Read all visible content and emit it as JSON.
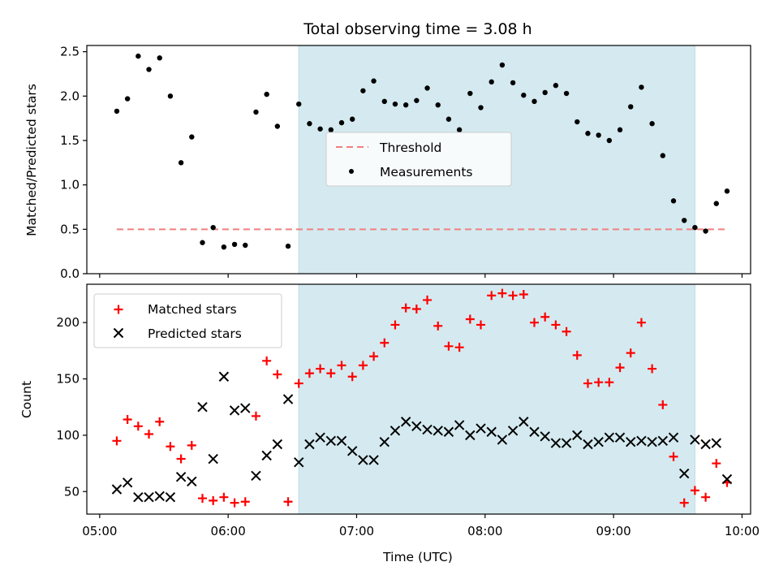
{
  "chart_data": [
    {
      "type": "scatter",
      "title": "Total observing time = 3.08 h",
      "xlabel": "",
      "ylabel": "Matched/Predicted stars",
      "ylim": [
        0,
        2.57
      ],
      "yticks": [
        "0.0",
        "0.5",
        "1.0",
        "1.5",
        "2.0",
        "2.5"
      ],
      "ytick_values": [
        0,
        0.5,
        1.0,
        1.5,
        2.0,
        2.5
      ],
      "grid": false,
      "legend_position": "center",
      "shaded_interval": [
        "06:33",
        "09:38"
      ],
      "shade_color": "#d4eaf0",
      "series": [
        {
          "name": "Threshold",
          "kind": "dashed-line",
          "color": "#f08080",
          "x": [
            "05:08",
            "09:52"
          ],
          "y": [
            0.5,
            0.5
          ]
        },
        {
          "name": "Measurements",
          "kind": "points",
          "color": "#000000",
          "x": [
            "05:08",
            "05:13",
            "05:18",
            "05:23",
            "05:28",
            "05:33",
            "05:38",
            "05:43",
            "05:48",
            "05:53",
            "05:58",
            "06:03",
            "06:08",
            "06:13",
            "06:18",
            "06:23",
            "06:28",
            "06:33",
            "06:38",
            "06:43",
            "06:48",
            "06:53",
            "06:58",
            "07:03",
            "07:08",
            "07:13",
            "07:18",
            "07:23",
            "07:28",
            "07:33",
            "07:38",
            "07:43",
            "07:48",
            "07:53",
            "07:58",
            "08:03",
            "08:08",
            "08:13",
            "08:18",
            "08:23",
            "08:28",
            "08:33",
            "08:38",
            "08:43",
            "08:48",
            "08:53",
            "08:58",
            "09:03",
            "09:08",
            "09:13",
            "09:18",
            "09:23",
            "09:28",
            "09:33",
            "09:38",
            "09:43",
            "09:48",
            "09:53"
          ],
          "y": [
            1.83,
            1.97,
            2.45,
            2.3,
            2.43,
            2.0,
            1.25,
            1.54,
            0.35,
            0.52,
            0.3,
            0.33,
            0.32,
            1.82,
            2.02,
            1.66,
            0.31,
            1.91,
            1.69,
            1.63,
            1.62,
            1.7,
            1.74,
            2.06,
            2.17,
            1.94,
            1.91,
            1.9,
            1.95,
            2.09,
            1.9,
            1.74,
            1.62,
            2.03,
            1.87,
            2.16,
            2.35,
            2.15,
            2.01,
            1.94,
            2.04,
            2.12,
            2.03,
            1.71,
            1.58,
            1.56,
            1.5,
            1.62,
            1.88,
            2.1,
            1.69,
            1.33,
            0.82,
            0.6,
            0.52,
            0.48,
            0.79,
            0.93
          ]
        }
      ]
    },
    {
      "type": "scatter",
      "title": "",
      "xlabel": "Time (UTC)",
      "ylabel": "Count",
      "ylim": [
        30,
        234
      ],
      "yticks": [
        "50",
        "100",
        "150",
        "200"
      ],
      "ytick_values": [
        50,
        100,
        150,
        200
      ],
      "xlim": [
        "04:54",
        "10:04"
      ],
      "xticks": [
        "05:00",
        "06:00",
        "07:00",
        "08:00",
        "09:00",
        "10:00"
      ],
      "grid": false,
      "legend_position": "upper left",
      "shaded_interval": [
        "06:33",
        "09:38"
      ],
      "shade_color": "#d4eaf0",
      "series": [
        {
          "name": "Matched stars",
          "marker": "plus",
          "color": "#ff0000",
          "x": [
            "05:08",
            "05:13",
            "05:18",
            "05:23",
            "05:28",
            "05:33",
            "05:38",
            "05:43",
            "05:48",
            "05:53",
            "05:58",
            "06:03",
            "06:08",
            "06:13",
            "06:18",
            "06:23",
            "06:28",
            "06:33",
            "06:38",
            "06:43",
            "06:48",
            "06:53",
            "06:58",
            "07:03",
            "07:08",
            "07:13",
            "07:18",
            "07:23",
            "07:28",
            "07:33",
            "07:38",
            "07:43",
            "07:48",
            "07:53",
            "07:58",
            "08:03",
            "08:08",
            "08:13",
            "08:18",
            "08:23",
            "08:28",
            "08:33",
            "08:38",
            "08:43",
            "08:48",
            "08:53",
            "08:58",
            "09:03",
            "09:08",
            "09:13",
            "09:18",
            "09:23",
            "09:28",
            "09:33",
            "09:38",
            "09:43",
            "09:48",
            "09:53"
          ],
          "y": [
            95,
            114,
            108,
            101,
            112,
            90,
            79,
            91,
            44,
            42,
            45,
            40,
            41,
            117,
            166,
            154,
            41,
            146,
            155,
            159,
            155,
            162,
            152,
            162,
            170,
            182,
            198,
            213,
            212,
            220,
            197,
            179,
            178,
            203,
            198,
            224,
            226,
            224,
            225,
            200,
            205,
            198,
            192,
            171,
            146,
            147,
            147,
            160,
            173,
            200,
            159,
            127,
            81,
            40,
            51,
            45,
            75,
            58
          ]
        },
        {
          "name": "Predicted stars",
          "marker": "x",
          "color": "#000000",
          "x": [
            "05:08",
            "05:13",
            "05:18",
            "05:23",
            "05:28",
            "05:33",
            "05:38",
            "05:43",
            "05:48",
            "05:53",
            "05:58",
            "06:03",
            "06:08",
            "06:13",
            "06:18",
            "06:23",
            "06:28",
            "06:33",
            "06:38",
            "06:43",
            "06:48",
            "06:53",
            "06:58",
            "07:03",
            "07:08",
            "07:13",
            "07:18",
            "07:23",
            "07:28",
            "07:33",
            "07:38",
            "07:43",
            "07:48",
            "07:53",
            "07:58",
            "08:03",
            "08:08",
            "08:13",
            "08:18",
            "08:23",
            "08:28",
            "08:33",
            "08:38",
            "08:43",
            "08:48",
            "08:53",
            "08:58",
            "09:03",
            "09:08",
            "09:13",
            "09:18",
            "09:23",
            "09:28",
            "09:33",
            "09:38",
            "09:43",
            "09:48",
            "09:53"
          ],
          "y": [
            52,
            58,
            45,
            45,
            46,
            45,
            63,
            59,
            125,
            79,
            152,
            122,
            124,
            64,
            82,
            92,
            132,
            76,
            92,
            98,
            95,
            95,
            86,
            78,
            78,
            94,
            104,
            112,
            108,
            105,
            104,
            103,
            109,
            100,
            106,
            103,
            96,
            104,
            112,
            103,
            99,
            93,
            93,
            100,
            92,
            94,
            98,
            98,
            94,
            95,
            94,
            95,
            98,
            66,
            96,
            92,
            93,
            61
          ]
        }
      ]
    }
  ]
}
